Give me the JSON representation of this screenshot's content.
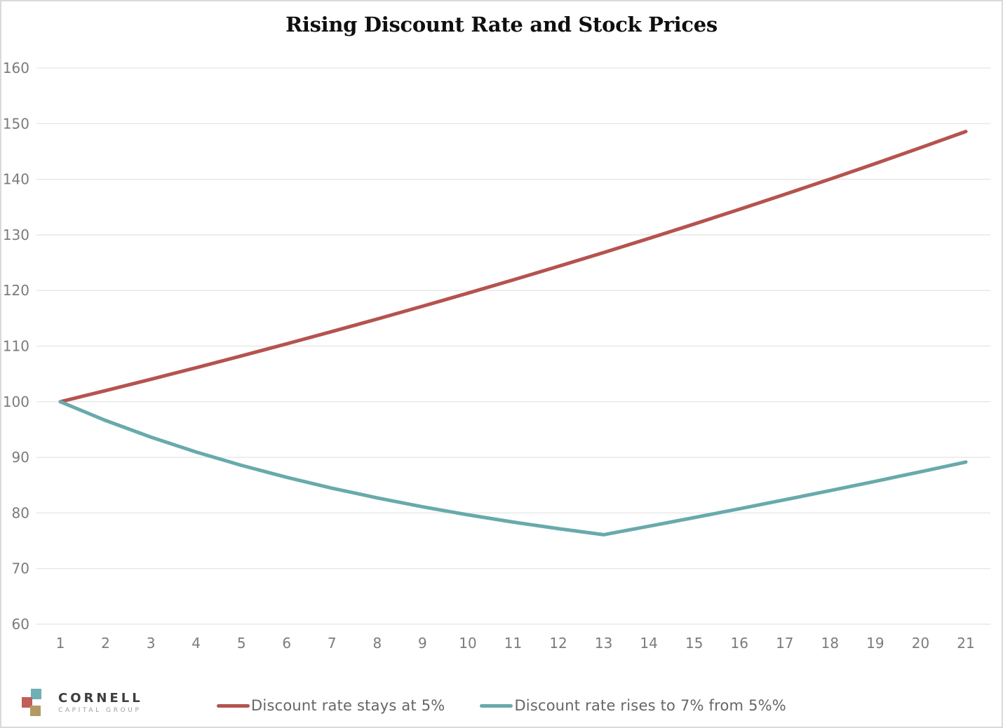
{
  "title": "Rising Discount Rate and Stock Prices",
  "colors": {
    "series_red": "#b5534f",
    "series_teal": "#68aaab",
    "grid": "#e8e8e8",
    "axis_label": "#7b7b7b",
    "legend_text": "#666666",
    "title_text": "#0f0f0f",
    "page_border": "#dadada",
    "logo_teal": "#6fb0b5",
    "logo_red": "#c05e59",
    "logo_tan": "#b39a62"
  },
  "chart_data": {
    "type": "line",
    "title": "Rising Discount Rate and Stock Prices",
    "x": [
      1,
      2,
      3,
      4,
      5,
      6,
      7,
      8,
      9,
      10,
      11,
      12,
      13,
      14,
      15,
      16,
      17,
      18,
      19,
      20,
      21
    ],
    "series": [
      {
        "name": "Discount rate stays at 5%",
        "color": "#b5534f",
        "values": [
          100.0,
          102.0,
          104.04,
          106.12,
          108.24,
          110.41,
          112.62,
          114.87,
          117.17,
          119.51,
          121.9,
          124.34,
          126.82,
          129.36,
          131.95,
          134.59,
          137.28,
          140.02,
          142.82,
          145.68,
          148.59
        ]
      },
      {
        "name": "Discount rate rises to 7% from 5%%",
        "color": "#68aaab",
        "values": [
          100.0,
          96.63,
          93.64,
          90.96,
          88.56,
          86.41,
          84.46,
          82.71,
          81.11,
          79.67,
          78.36,
          77.18,
          76.09,
          77.62,
          79.17,
          80.75,
          82.37,
          84.01,
          85.69,
          87.41,
          89.16
        ]
      }
    ],
    "xlabel": "",
    "ylabel": "",
    "ylim": [
      60,
      160
    ],
    "ytick_step": 10,
    "grid": "horizontal-only",
    "legend_position": "bottom-center"
  },
  "legend": {
    "items": [
      {
        "label": "Discount rate stays at 5%",
        "color": "#b5534f"
      },
      {
        "label": "Discount rate rises to 7% from 5%%",
        "color": "#68aaab"
      }
    ]
  },
  "logo": {
    "name": "CORNELL",
    "subtitle": "CAPITAL GROUP"
  }
}
